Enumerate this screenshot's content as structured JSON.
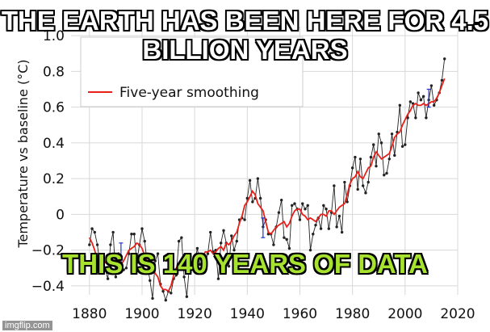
{
  "meme": {
    "top_text": "THE EARTH HAS BEEN HERE FOR 4.5 BILLION YEARS",
    "bottom_text": "THIS IS 140 YEARS OF DATA",
    "watermark": "imgflip.com"
  },
  "chart_data": {
    "type": "line",
    "title": "",
    "xlabel": "",
    "ylabel": "Temperature vs baseline (°C)",
    "xlim": [
      1873,
      2020
    ],
    "ylim": [
      -0.45,
      1.05
    ],
    "grid": true,
    "x_ticks": [
      "1880",
      "1900",
      "1920",
      "1940",
      "1960",
      "1980",
      "2000",
      "2020"
    ],
    "y_ticks": [
      "1.0",
      "0.8",
      "0.6",
      "0.4",
      "0.2",
      "0",
      "−0.2",
      "−0.4"
    ],
    "legend": {
      "position": "top",
      "entries": [
        "Five-year smoothing"
      ]
    },
    "colors": {
      "annual": "#222222",
      "smoothing": "#e8201a",
      "error_bars": "#2233cc",
      "grid": "#d8d8d8"
    },
    "series": [
      {
        "name": "",
        "style": "annual",
        "x": [
          1880,
          1881,
          1882,
          1883,
          1884,
          1885,
          1886,
          1887,
          1888,
          1889,
          1890,
          1891,
          1892,
          1893,
          1894,
          1895,
          1896,
          1897,
          1898,
          1899,
          1900,
          1901,
          1902,
          1903,
          1904,
          1905,
          1906,
          1907,
          1908,
          1909,
          1910,
          1911,
          1912,
          1913,
          1914,
          1915,
          1916,
          1917,
          1918,
          1919,
          1920,
          1921,
          1922,
          1923,
          1924,
          1925,
          1926,
          1927,
          1928,
          1929,
          1930,
          1931,
          1932,
          1933,
          1934,
          1935,
          1936,
          1937,
          1938,
          1939,
          1940,
          1941,
          1942,
          1943,
          1944,
          1945,
          1946,
          1947,
          1948,
          1949,
          1950,
          1951,
          1952,
          1953,
          1954,
          1955,
          1956,
          1957,
          1958,
          1959,
          1960,
          1961,
          1962,
          1963,
          1964,
          1965,
          1966,
          1967,
          1968,
          1969,
          1970,
          1971,
          1972,
          1973,
          1974,
          1975,
          1976,
          1977,
          1978,
          1979,
          1980,
          1981,
          1982,
          1983,
          1984,
          1985,
          1986,
          1987,
          1988,
          1989,
          1990,
          1991,
          1992,
          1993,
          1994,
          1995,
          1996,
          1997,
          1998,
          1999,
          2000,
          2001,
          2002,
          2003,
          2004,
          2005,
          2006,
          2007,
          2008,
          2009,
          2010,
          2011,
          2012,
          2013,
          2014,
          2015
        ],
        "y": [
          -0.17,
          -0.08,
          -0.1,
          -0.17,
          -0.28,
          -0.33,
          -0.31,
          -0.36,
          -0.17,
          -0.1,
          -0.35,
          -0.22,
          -0.27,
          -0.31,
          -0.3,
          -0.22,
          -0.11,
          -0.11,
          -0.27,
          -0.17,
          -0.08,
          -0.15,
          -0.28,
          -0.37,
          -0.47,
          -0.26,
          -0.22,
          -0.39,
          -0.43,
          -0.48,
          -0.43,
          -0.44,
          -0.36,
          -0.34,
          -0.15,
          -0.13,
          -0.35,
          -0.46,
          -0.29,
          -0.27,
          -0.27,
          -0.19,
          -0.28,
          -0.26,
          -0.27,
          -0.22,
          -0.1,
          -0.21,
          -0.2,
          -0.36,
          -0.16,
          -0.09,
          -0.16,
          -0.29,
          -0.12,
          -0.2,
          -0.15,
          -0.03,
          -0.02,
          -0.03,
          0.09,
          0.19,
          0.07,
          0.09,
          0.2,
          0.09,
          -0.07,
          -0.03,
          -0.11,
          -0.11,
          -0.17,
          -0.07,
          0.01,
          0.08,
          -0.13,
          -0.14,
          -0.19,
          0.05,
          0.06,
          0.03,
          -0.03,
          0.06,
          0.03,
          0.05,
          -0.2,
          -0.11,
          -0.06,
          -0.02,
          -0.08,
          0.05,
          0.03,
          -0.08,
          0.01,
          0.16,
          -0.07,
          -0.01,
          -0.1,
          0.18,
          0.07,
          0.16,
          0.26,
          0.32,
          0.14,
          0.31,
          0.16,
          0.12,
          0.18,
          0.32,
          0.39,
          0.27,
          0.45,
          0.4,
          0.22,
          0.23,
          0.31,
          0.45,
          0.33,
          0.46,
          0.61,
          0.38,
          0.39,
          0.54,
          0.63,
          0.62,
          0.54,
          0.68,
          0.64,
          0.66,
          0.54,
          0.64,
          0.72,
          0.61,
          0.64,
          0.68,
          0.75,
          0.87
        ]
      },
      {
        "name": "Five-year smoothing",
        "style": "smoothing",
        "x": [
          1880,
          1881,
          1882,
          1883,
          1884,
          1885,
          1886,
          1887,
          1888,
          1889,
          1890,
          1891,
          1892,
          1893,
          1894,
          1895,
          1896,
          1897,
          1898,
          1899,
          1900,
          1901,
          1902,
          1903,
          1904,
          1905,
          1906,
          1907,
          1908,
          1909,
          1910,
          1911,
          1912,
          1913,
          1914,
          1915,
          1916,
          1917,
          1918,
          1919,
          1920,
          1921,
          1922,
          1923,
          1924,
          1925,
          1926,
          1927,
          1928,
          1929,
          1930,
          1931,
          1932,
          1933,
          1934,
          1935,
          1936,
          1937,
          1938,
          1939,
          1940,
          1941,
          1942,
          1943,
          1944,
          1945,
          1946,
          1947,
          1948,
          1949,
          1950,
          1951,
          1952,
          1953,
          1954,
          1955,
          1956,
          1957,
          1958,
          1959,
          1960,
          1961,
          1962,
          1963,
          1964,
          1965,
          1966,
          1967,
          1968,
          1969,
          1970,
          1971,
          1972,
          1973,
          1974,
          1975,
          1976,
          1977,
          1978,
          1979,
          1980,
          1981,
          1982,
          1983,
          1984,
          1985,
          1986,
          1987,
          1988,
          1989,
          1990,
          1991,
          1992,
          1993,
          1994,
          1995,
          1996,
          1997,
          1998,
          1999,
          2000,
          2001,
          2002,
          2003,
          2004,
          2005,
          2006,
          2007,
          2008,
          2009,
          2010,
          2011,
          2012,
          2013,
          2014,
          2015
        ],
        "y": [
          -0.13,
          -0.16,
          -0.2,
          -0.26,
          -0.3,
          -0.28,
          -0.27,
          -0.24,
          -0.25,
          -0.24,
          -0.23,
          -0.25,
          -0.28,
          -0.26,
          -0.23,
          -0.2,
          -0.19,
          -0.18,
          -0.16,
          -0.17,
          -0.19,
          -0.23,
          -0.29,
          -0.3,
          -0.31,
          -0.33,
          -0.35,
          -0.4,
          -0.42,
          -0.42,
          -0.43,
          -0.4,
          -0.34,
          -0.3,
          -0.27,
          -0.29,
          -0.31,
          -0.3,
          -0.31,
          -0.28,
          -0.25,
          -0.25,
          -0.25,
          -0.24,
          -0.21,
          -0.21,
          -0.2,
          -0.22,
          -0.21,
          -0.19,
          -0.18,
          -0.2,
          -0.16,
          -0.17,
          -0.15,
          -0.12,
          -0.1,
          -0.05,
          -0.01,
          0.05,
          0.07,
          0.1,
          0.13,
          0.11,
          0.06,
          0.04,
          0.02,
          -0.04,
          -0.1,
          -0.11,
          -0.09,
          -0.07,
          -0.06,
          -0.05,
          -0.04,
          -0.07,
          -0.05,
          -0.01,
          0.02,
          0.03,
          0.03,
          0.0,
          -0.01,
          -0.03,
          -0.02,
          -0.03,
          -0.04,
          -0.02,
          0.0,
          0.0,
          -0.01,
          0.02,
          0.02,
          0.0,
          0.02,
          0.04,
          0.05,
          0.06,
          0.11,
          0.17,
          0.2,
          0.21,
          0.24,
          0.21,
          0.2,
          0.23,
          0.26,
          0.27,
          0.32,
          0.35,
          0.33,
          0.31,
          0.32,
          0.33,
          0.34,
          0.38,
          0.43,
          0.45,
          0.46,
          0.5,
          0.53,
          0.56,
          0.58,
          0.61,
          0.62,
          0.61,
          0.61,
          0.62,
          0.61,
          0.62,
          0.63,
          0.63,
          0.65,
          0.68,
          0.72,
          0.76
        ]
      }
    ],
    "error_bars": [
      {
        "x": 1892,
        "low": -0.28,
        "high": -0.16
      },
      {
        "x": 1946,
        "low": -0.13,
        "high": -0.02
      },
      {
        "x": 2009,
        "low": 0.6,
        "high": 0.7
      }
    ]
  }
}
